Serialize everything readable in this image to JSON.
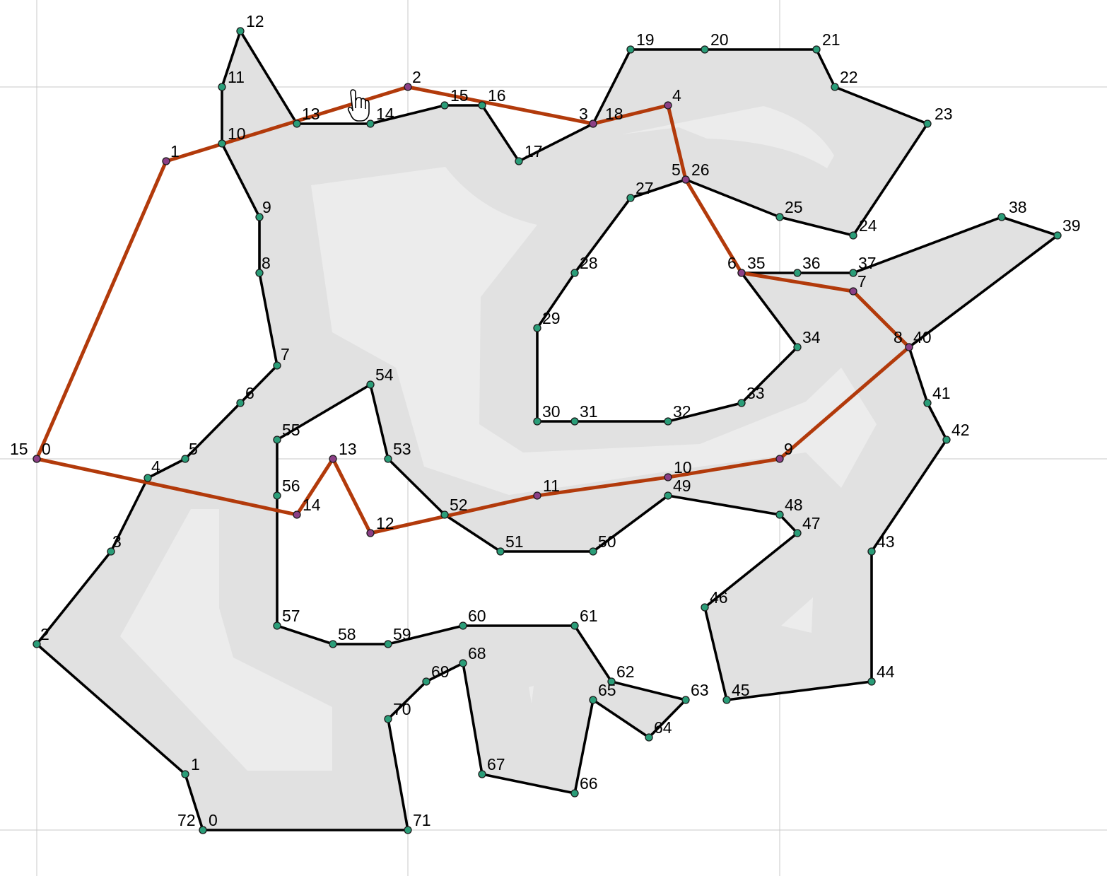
{
  "colors": {
    "background": "#ffffff",
    "polygon_fill": "#e1e1e1",
    "inner_band": "#ececec",
    "polygon_edge": "#000000",
    "route_edge": "#b23a0b",
    "polygon_vertex": "#2a9d78",
    "route_vertex": "#8b3f86",
    "grid": "#c8c8c8"
  },
  "cursor": {
    "icon": "hand-pointer-icon"
  },
  "polygon": {
    "vertex_labels": [
      "0",
      "1",
      "2",
      "3",
      "4",
      "5",
      "6",
      "7",
      "8",
      "9",
      "10",
      "11",
      "12",
      "13",
      "14",
      "15",
      "16",
      "17",
      "18",
      "19",
      "20",
      "21",
      "22",
      "23",
      "24",
      "25",
      "26",
      "27",
      "28",
      "29",
      "30",
      "31",
      "32",
      "33",
      "34",
      "35",
      "36",
      "37",
      "38",
      "39",
      "40",
      "41",
      "42",
      "43",
      "44",
      "45",
      "46",
      "47",
      "48",
      "49",
      "50",
      "51",
      "52",
      "53",
      "54",
      "55",
      "56",
      "57",
      "58",
      "59",
      "60",
      "61",
      "62",
      "63",
      "64",
      "65",
      "66",
      "67",
      "68",
      "69",
      "70",
      "71",
      "72"
    ]
  },
  "route": {
    "vertex_labels": [
      "0",
      "1",
      "2",
      "3",
      "4",
      "5",
      "6",
      "7",
      "8",
      "9",
      "10",
      "11",
      "12",
      "13",
      "14",
      "15"
    ]
  }
}
